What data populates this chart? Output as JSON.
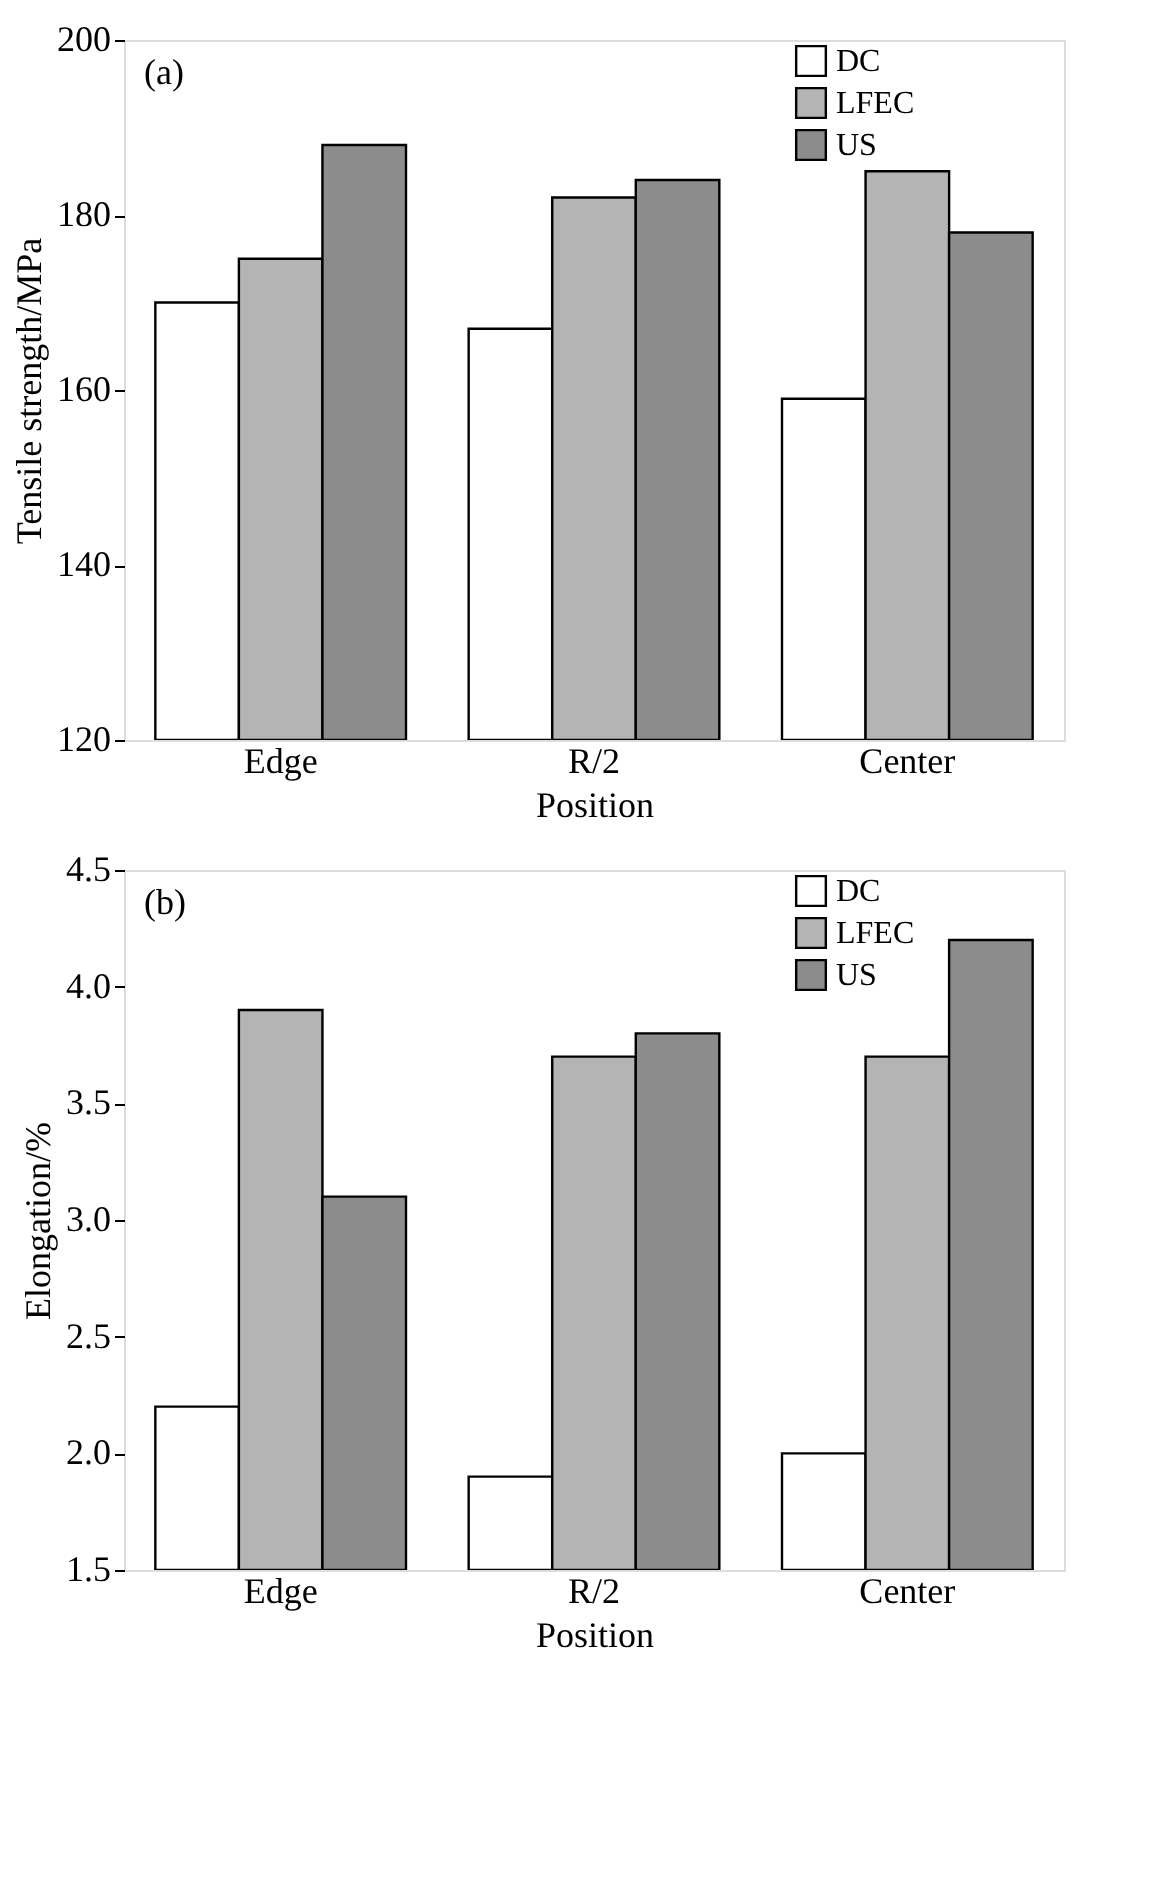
{
  "chart_data": [
    {
      "type": "bar",
      "annotations": [
        "(a)"
      ],
      "xlabel": "Position",
      "ylabel": "Tensile strength/MPa",
      "categories": [
        "Edge",
        "R/2",
        "Center"
      ],
      "series": [
        {
          "name": "DC",
          "color": "#ffffff",
          "values": [
            170,
            167,
            159
          ]
        },
        {
          "name": "LFEC",
          "color": "#b4b4b4",
          "values": [
            175,
            182,
            185
          ]
        },
        {
          "name": "US",
          "color": "#8c8c8c",
          "values": [
            188,
            184,
            178
          ]
        }
      ],
      "ylim": [
        120,
        200
      ],
      "yticks": [
        120,
        140,
        160,
        180,
        200
      ],
      "grid": false,
      "legend": "top right"
    },
    {
      "type": "bar",
      "annotations": [
        "(b)"
      ],
      "xlabel": "Position",
      "ylabel": "Elongation/%",
      "categories": [
        "Edge",
        "R/2",
        "Center"
      ],
      "series": [
        {
          "name": "DC",
          "color": "#ffffff",
          "values": [
            2.2,
            1.9,
            2.0
          ]
        },
        {
          "name": "LFEC",
          "color": "#b4b4b4",
          "values": [
            3.9,
            3.7,
            3.7
          ]
        },
        {
          "name": "US",
          "color": "#8c8c8c",
          "values": [
            3.1,
            3.8,
            4.2
          ]
        }
      ],
      "ylim": [
        1.5,
        4.5
      ],
      "yticks": [
        {
          "value": 1.5,
          "label": "1.5"
        },
        {
          "value": 2,
          "label": "2.0"
        },
        {
          "value": 2.5,
          "label": "2.5"
        },
        {
          "value": 3,
          "label": "3.0"
        },
        {
          "value": 3.5,
          "label": "3.5"
        },
        {
          "value": 4,
          "label": "4.0"
        },
        {
          "value": 4.5,
          "label": "4.5"
        }
      ],
      "grid": false,
      "legend": "top right"
    }
  ]
}
